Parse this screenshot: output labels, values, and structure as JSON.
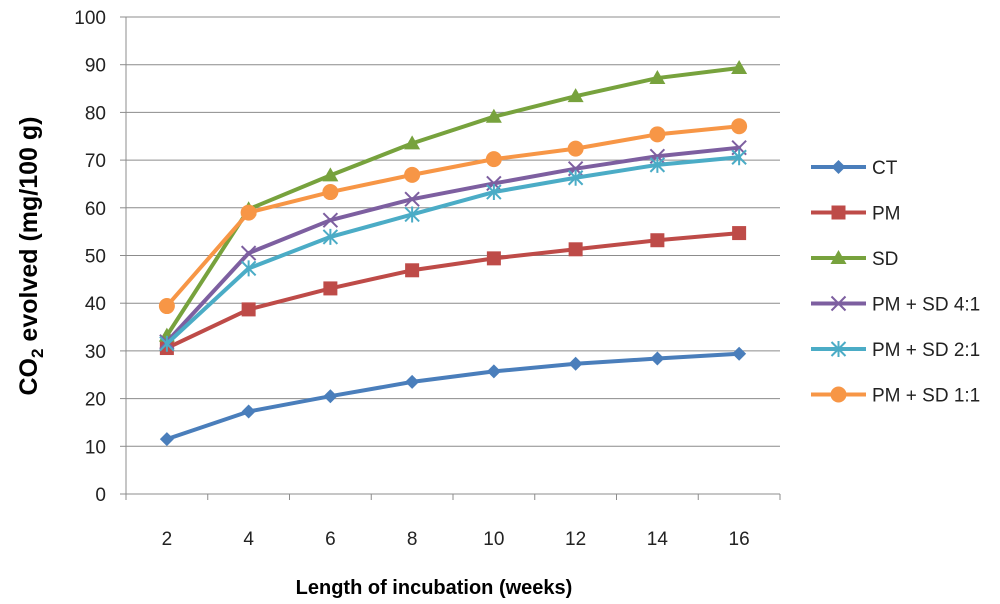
{
  "chart_data": {
    "type": "line",
    "xlabel": "Length of incubation (weeks)",
    "ylabel_prefix": "CO",
    "ylabel_sub": "2",
    "ylabel_suffix": " evolved (mg/100 g)",
    "categories": [
      "2",
      "4",
      "6",
      "8",
      "10",
      "12",
      "14",
      "16"
    ],
    "ylim": [
      0,
      100
    ],
    "yticks": [
      "0",
      "10",
      "20",
      "30",
      "40",
      "50",
      "60",
      "70",
      "80",
      "90",
      "100"
    ],
    "grid": "horizontal",
    "legend_position": "right",
    "series": [
      {
        "name": "CT",
        "color": "#4A7EBB",
        "marker": "diamond",
        "values": [
          11.5,
          17.3,
          20.5,
          23.5,
          25.7,
          27.3,
          28.4,
          29.4
        ]
      },
      {
        "name": "PM",
        "color": "#BE4B48",
        "marker": "square",
        "values": [
          30.6,
          38.7,
          43.1,
          46.9,
          49.4,
          51.3,
          53.2,
          54.7
        ]
      },
      {
        "name": "SD",
        "color": "#77A23D",
        "marker": "triangle",
        "values": [
          33.2,
          59.7,
          66.8,
          73.5,
          79.1,
          83.4,
          87.2,
          89.3
        ]
      },
      {
        "name": "PM + SD 4:1",
        "color": "#7D5FA0",
        "marker": "x",
        "values": [
          31.9,
          50.5,
          57.4,
          61.8,
          65.1,
          68.2,
          70.8,
          72.6
        ]
      },
      {
        "name": "PM + SD 2:1",
        "color": "#4BACC6",
        "marker": "asterisk",
        "values": [
          31.5,
          47.3,
          53.9,
          58.6,
          63.3,
          66.3,
          69.0,
          70.6
        ]
      },
      {
        "name": "PM + SD 1:1",
        "color": "#F79646",
        "marker": "circle",
        "values": [
          39.4,
          59.0,
          63.3,
          66.9,
          70.2,
          72.4,
          75.4,
          77.1
        ]
      }
    ]
  }
}
